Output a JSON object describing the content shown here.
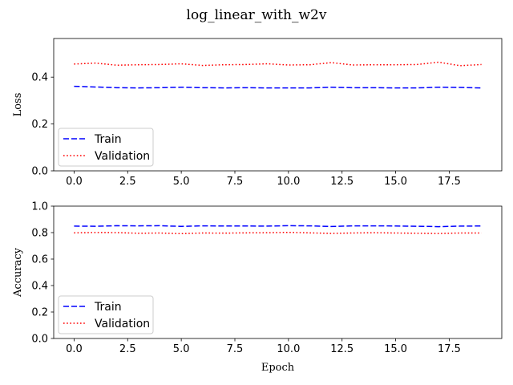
{
  "figure": {
    "title": "log_linear_with_w2v"
  },
  "chart_data": [
    {
      "type": "line",
      "title": "",
      "xlabel": "",
      "ylabel": "Loss",
      "xlim": [
        -0.95,
        19.95
      ],
      "ylim": [
        0,
        0.565
      ],
      "xticks": [
        0,
        2.5,
        5,
        7.5,
        10,
        12.5,
        15,
        17.5
      ],
      "xtick_labels": [
        "0.0",
        "2.5",
        "5.0",
        "7.5",
        "10.0",
        "12.5",
        "15.0",
        "17.5"
      ],
      "yticks": [
        0,
        0.2,
        0.4
      ],
      "ytick_labels": [
        "0.0",
        "0.2",
        "0.4"
      ],
      "x": [
        0,
        1,
        2,
        3,
        4,
        5,
        6,
        7,
        8,
        9,
        10,
        11,
        12,
        13,
        14,
        15,
        16,
        17,
        18,
        19
      ],
      "series": [
        {
          "name": "Train",
          "color": "#0000ff",
          "style": "dashed",
          "values": [
            0.361,
            0.358,
            0.355,
            0.354,
            0.355,
            0.357,
            0.355,
            0.354,
            0.355,
            0.354,
            0.354,
            0.354,
            0.357,
            0.355,
            0.355,
            0.354,
            0.354,
            0.357,
            0.356,
            0.354
          ]
        },
        {
          "name": "Validation",
          "color": "#ff0000",
          "style": "dotted",
          "values": [
            0.456,
            0.46,
            0.451,
            0.453,
            0.454,
            0.457,
            0.45,
            0.453,
            0.454,
            0.457,
            0.452,
            0.453,
            0.462,
            0.452,
            0.453,
            0.453,
            0.454,
            0.464,
            0.449,
            0.454
          ]
        }
      ],
      "legend": {
        "placement": "lower-left"
      },
      "grid": false
    },
    {
      "type": "line",
      "title": "",
      "xlabel": "Epoch",
      "ylabel": "Accuracy",
      "xlim": [
        -0.95,
        19.95
      ],
      "ylim": [
        0,
        1.0
      ],
      "xticks": [
        0,
        2.5,
        5,
        7.5,
        10,
        12.5,
        15,
        17.5
      ],
      "xtick_labels": [
        "0.0",
        "2.5",
        "5.0",
        "7.5",
        "10.0",
        "12.5",
        "15.0",
        "17.5"
      ],
      "yticks": [
        0,
        0.2,
        0.4,
        0.6,
        0.8,
        1.0
      ],
      "ytick_labels": [
        "0.0",
        "0.2",
        "0.4",
        "0.6",
        "0.8",
        "1.0"
      ],
      "x": [
        0,
        1,
        2,
        3,
        4,
        5,
        6,
        7,
        8,
        9,
        10,
        11,
        12,
        13,
        14,
        15,
        16,
        17,
        18,
        19
      ],
      "series": [
        {
          "name": "Train",
          "color": "#0000ff",
          "style": "dashed",
          "values": [
            0.849,
            0.848,
            0.852,
            0.851,
            0.852,
            0.847,
            0.851,
            0.85,
            0.85,
            0.849,
            0.852,
            0.851,
            0.846,
            0.851,
            0.851,
            0.85,
            0.848,
            0.845,
            0.849,
            0.85
          ]
        },
        {
          "name": "Validation",
          "color": "#ff0000",
          "style": "dotted",
          "values": [
            0.798,
            0.801,
            0.8,
            0.795,
            0.797,
            0.792,
            0.797,
            0.796,
            0.798,
            0.799,
            0.802,
            0.798,
            0.794,
            0.797,
            0.799,
            0.797,
            0.795,
            0.793,
            0.797,
            0.797
          ]
        }
      ],
      "legend": {
        "placement": "lower-left"
      },
      "grid": false
    }
  ]
}
